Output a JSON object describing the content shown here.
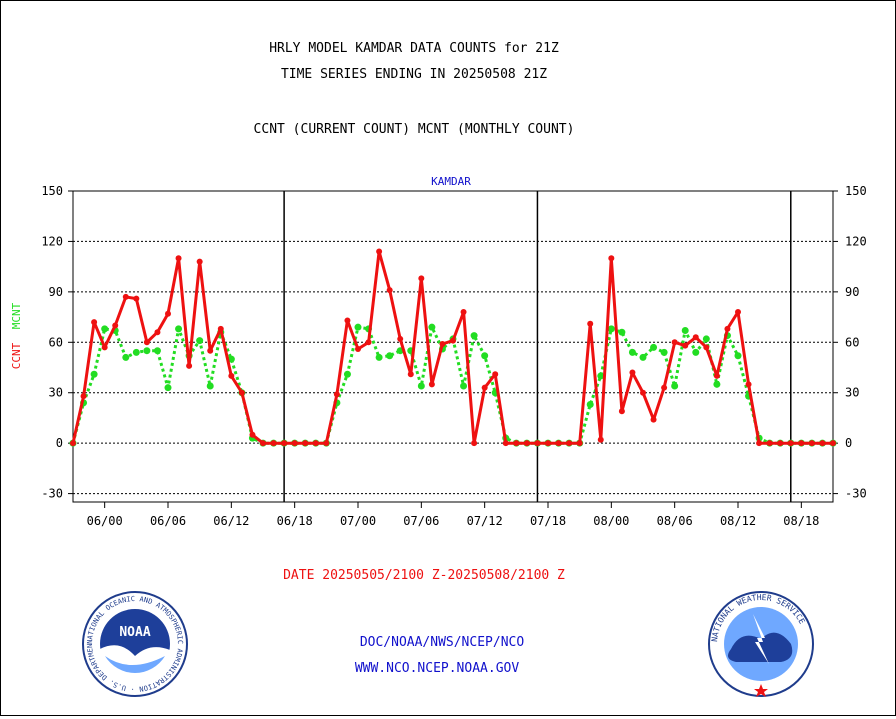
{
  "header": {
    "line1": "HRLY MODEL KAMDAR DATA COUNTS for 21Z",
    "line2": "TIME SERIES ENDING IN 20250508 21Z",
    "line3": "CCNT (CURRENT COUNT) MCNT (MONTHLY COUNT)"
  },
  "footer": {
    "date_range": "DATE 20250505/2100 Z-20250508/2100 Z",
    "org": "DOC/NOAA/NWS/NCEP/NCO",
    "url": "WWW.NCO.NCEP.NOAA.GOV"
  },
  "logos": {
    "noaa_text": "NOAA",
    "noaa_ring": "NATIONAL OCEANIC AND ATMOSPHERIC ADMINISTRATION · U.S. DEPARTMENT OF COMMERCE ·",
    "nws_ring": "NATIONAL WEATHER SERVICE"
  },
  "colors": {
    "ccnt": "#ee1111",
    "mcnt": "#22dd22",
    "title_blue": "#1111cc",
    "footer_red": "#ee1111"
  },
  "chart_data": {
    "type": "line",
    "title": "KAMDAR",
    "ylabel_left": [
      "CCNT",
      "MCNT"
    ],
    "ylim": [
      -35,
      150
    ],
    "yticks": [
      -30,
      0,
      30,
      60,
      90,
      120,
      150
    ],
    "xlim": [
      -1,
      71
    ],
    "x_tick_labels": [
      "06/00",
      "06/06",
      "06/12",
      "06/18",
      "07/00",
      "07/06",
      "07/12",
      "07/18",
      "08/00",
      "08/06",
      "08/12",
      "08/18"
    ],
    "x_tick_hours": [
      2,
      8,
      14,
      20,
      26,
      32,
      38,
      44,
      50,
      56,
      62,
      68
    ],
    "day_boundaries": [
      19,
      43,
      67
    ],
    "grid": true,
    "x_hours": [
      -1,
      0,
      1,
      2,
      3,
      4,
      5,
      6,
      7,
      8,
      9,
      10,
      11,
      12,
      13,
      14,
      15,
      16,
      17,
      18,
      19,
      20,
      21,
      22,
      23,
      24,
      25,
      26,
      27,
      28,
      29,
      30,
      31,
      32,
      33,
      34,
      35,
      36,
      37,
      38,
      39,
      40,
      41,
      42,
      43,
      44,
      45,
      46,
      47,
      48,
      49,
      50,
      51,
      52,
      53,
      54,
      55,
      56,
      57,
      58,
      59,
      60,
      61,
      62,
      63,
      64,
      65,
      66,
      67,
      68,
      69,
      70,
      71
    ],
    "series": [
      {
        "name": "CCNT",
        "values": [
          0,
          28,
          72,
          57,
          70,
          87,
          86,
          60,
          66,
          77,
          110,
          46,
          108,
          55,
          68,
          40,
          30,
          5,
          0,
          0,
          0,
          0,
          0,
          0,
          0,
          29,
          73,
          56,
          60,
          114,
          91,
          62,
          41,
          98,
          35,
          59,
          61,
          78,
          0,
          33,
          41,
          0,
          0,
          0,
          0,
          0,
          0,
          0,
          0,
          71,
          2,
          110,
          19,
          42,
          30,
          14,
          33,
          60,
          58,
          63,
          57,
          40,
          68,
          78,
          35,
          0,
          0,
          0,
          0,
          0,
          0,
          0,
          0
        ]
      },
      {
        "name": "MCNT",
        "values": [
          0,
          24,
          41,
          68,
          67,
          51,
          54,
          55,
          55,
          33,
          68,
          52,
          61,
          34,
          66,
          50,
          30,
          3,
          0,
          0,
          0,
          0,
          0,
          0,
          0,
          24,
          41,
          69,
          68,
          51,
          52,
          55,
          55,
          34,
          69,
          56,
          62,
          34,
          64,
          52,
          30,
          3,
          0,
          0,
          0,
          0,
          0,
          0,
          0,
          23,
          40,
          68,
          66,
          54,
          51,
          57,
          54,
          34,
          67,
          54,
          62,
          35,
          64,
          52,
          28,
          3,
          0,
          0,
          0,
          0,
          0,
          0,
          0
        ]
      }
    ]
  }
}
